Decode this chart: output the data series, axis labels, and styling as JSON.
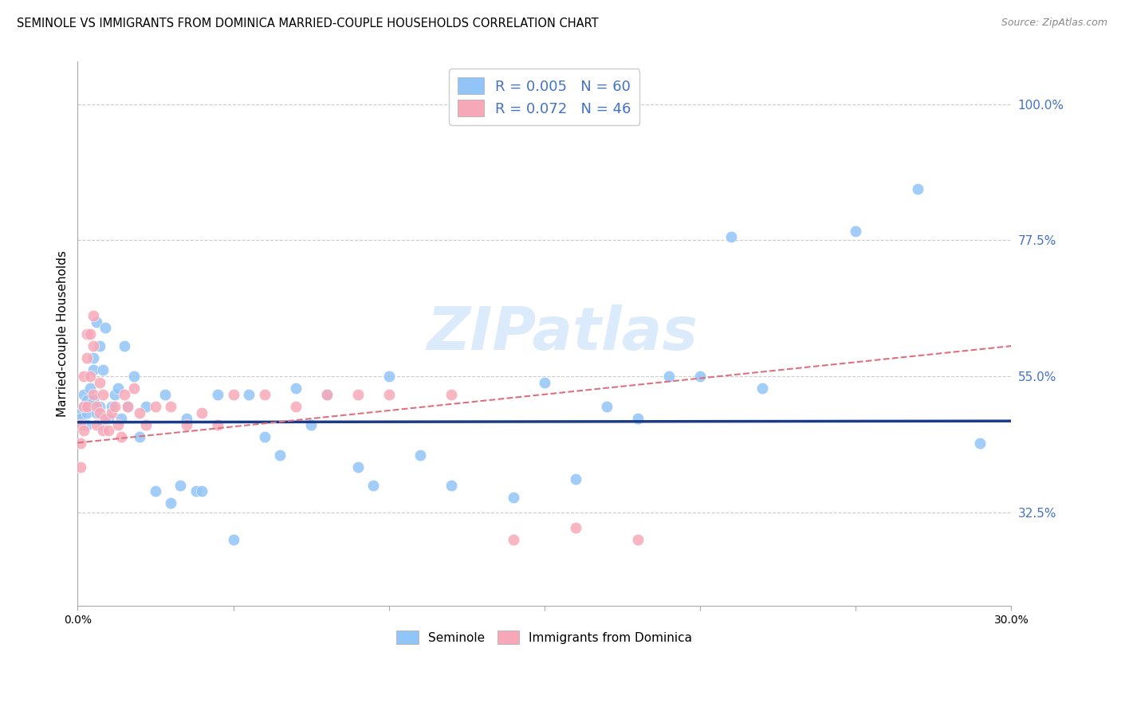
{
  "title": "SEMINOLE VS IMMIGRANTS FROM DOMINICA MARRIED-COUPLE HOUSEHOLDS CORRELATION CHART",
  "source": "Source: ZipAtlas.com",
  "ylabel": "Married-couple Households",
  "ytick_labels": [
    "100.0%",
    "77.5%",
    "55.0%",
    "32.5%"
  ],
  "ytick_values": [
    1.0,
    0.775,
    0.55,
    0.325
  ],
  "xlim": [
    0.0,
    0.3
  ],
  "ylim": [
    0.17,
    1.07
  ],
  "legend1_r": "0.005",
  "legend1_n": "60",
  "legend2_r": "0.072",
  "legend2_n": "46",
  "seminole_color": "#92C5F7",
  "dominica_color": "#F7A8B8",
  "seminole_trendline_color": "#1A3A8A",
  "dominica_trendline_color": "#E07080",
  "watermark_text": "ZIPatlas",
  "seminole_x": [
    0.001,
    0.001,
    0.002,
    0.002,
    0.003,
    0.003,
    0.003,
    0.004,
    0.005,
    0.005,
    0.005,
    0.006,
    0.006,
    0.007,
    0.007,
    0.008,
    0.008,
    0.009,
    0.01,
    0.011,
    0.012,
    0.013,
    0.014,
    0.015,
    0.016,
    0.018,
    0.02,
    0.022,
    0.025,
    0.028,
    0.03,
    0.033,
    0.035,
    0.038,
    0.04,
    0.045,
    0.05,
    0.055,
    0.06,
    0.065,
    0.07,
    0.075,
    0.08,
    0.09,
    0.095,
    0.1,
    0.11,
    0.12,
    0.14,
    0.15,
    0.16,
    0.17,
    0.18,
    0.19,
    0.2,
    0.21,
    0.22,
    0.25,
    0.27,
    0.29
  ],
  "seminole_y": [
    0.49,
    0.48,
    0.52,
    0.5,
    0.49,
    0.51,
    0.47,
    0.53,
    0.58,
    0.56,
    0.51,
    0.49,
    0.64,
    0.6,
    0.5,
    0.56,
    0.47,
    0.63,
    0.48,
    0.5,
    0.52,
    0.53,
    0.48,
    0.6,
    0.5,
    0.55,
    0.45,
    0.5,
    0.36,
    0.52,
    0.34,
    0.37,
    0.48,
    0.36,
    0.36,
    0.52,
    0.28,
    0.52,
    0.45,
    0.42,
    0.53,
    0.47,
    0.52,
    0.4,
    0.37,
    0.55,
    0.42,
    0.37,
    0.35,
    0.54,
    0.38,
    0.5,
    0.48,
    0.55,
    0.55,
    0.78,
    0.53,
    0.79,
    0.86,
    0.44
  ],
  "dominica_x": [
    0.001,
    0.001,
    0.001,
    0.002,
    0.002,
    0.002,
    0.003,
    0.003,
    0.003,
    0.004,
    0.004,
    0.005,
    0.005,
    0.005,
    0.006,
    0.006,
    0.007,
    0.007,
    0.008,
    0.008,
    0.009,
    0.01,
    0.011,
    0.012,
    0.013,
    0.014,
    0.015,
    0.016,
    0.018,
    0.02,
    0.022,
    0.025,
    0.03,
    0.035,
    0.04,
    0.045,
    0.05,
    0.06,
    0.07,
    0.08,
    0.09,
    0.1,
    0.12,
    0.14,
    0.16,
    0.18
  ],
  "dominica_y": [
    0.47,
    0.44,
    0.4,
    0.55,
    0.5,
    0.46,
    0.62,
    0.58,
    0.5,
    0.62,
    0.55,
    0.65,
    0.6,
    0.52,
    0.5,
    0.47,
    0.54,
    0.49,
    0.52,
    0.46,
    0.48,
    0.46,
    0.49,
    0.5,
    0.47,
    0.45,
    0.52,
    0.5,
    0.53,
    0.49,
    0.47,
    0.5,
    0.5,
    0.47,
    0.49,
    0.47,
    0.52,
    0.52,
    0.5,
    0.52,
    0.52,
    0.52,
    0.52,
    0.28,
    0.3,
    0.28
  ],
  "sem_trendline_x": [
    0.0,
    0.3
  ],
  "sem_trendline_y": [
    0.474,
    0.476
  ],
  "dom_trendline_x": [
    0.0,
    0.3
  ],
  "dom_trendline_y": [
    0.44,
    0.6
  ]
}
